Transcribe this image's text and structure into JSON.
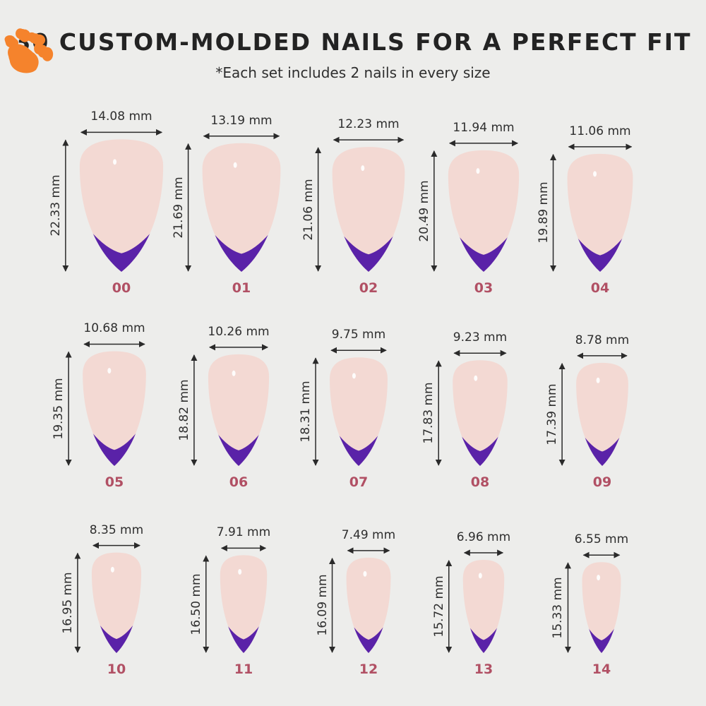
{
  "title": "30 CUSTOM-MOLDED NAILS FOR A PERFECT FIT",
  "subtitle": "*Each set includes 2 nails in every size",
  "colors": {
    "background": "#ededeb",
    "nail": "#f3d9d3",
    "tip": "#5a22a8",
    "paw": "#f5832c",
    "size_label": "#b15064"
  },
  "nails": [
    {
      "size": "00",
      "width": "14.08 mm",
      "height": "22.33 mm",
      "w": 14.08,
      "h": 22.33,
      "paw": false
    },
    {
      "size": "01",
      "width": "13.19 mm",
      "height": "21.69 mm",
      "w": 13.19,
      "h": 21.69,
      "paw": false
    },
    {
      "size": "02",
      "width": "12.23 mm",
      "height": "21.06 mm",
      "w": 12.23,
      "h": 21.06,
      "paw": false
    },
    {
      "size": "03",
      "width": "11.94 mm",
      "height": "20.49 mm",
      "w": 11.94,
      "h": 20.49,
      "paw": false
    },
    {
      "size": "04",
      "width": "11.06 mm",
      "height": "19.89 mm",
      "w": 11.06,
      "h": 19.89,
      "paw": false
    },
    {
      "size": "05",
      "width": "10.68 mm",
      "height": "19.35 mm",
      "w": 10.68,
      "h": 19.35,
      "paw": false
    },
    {
      "size": "06",
      "width": "10.26 mm",
      "height": "18.82 mm",
      "w": 10.26,
      "h": 18.82,
      "paw": true
    },
    {
      "size": "07",
      "width": "9.75 mm",
      "height": "18.31 mm",
      "w": 9.75,
      "h": 18.31,
      "paw": false
    },
    {
      "size": "08",
      "width": "9.23 mm",
      "height": "17.83 mm",
      "w": 9.23,
      "h": 17.83,
      "paw": true
    },
    {
      "size": "09",
      "width": "8.78 mm",
      "height": "17.39 mm",
      "w": 8.78,
      "h": 17.39,
      "paw": false
    },
    {
      "size": "10",
      "width": "8.35 mm",
      "height": "16.95 mm",
      "w": 8.35,
      "h": 16.95,
      "paw": true
    },
    {
      "size": "11",
      "width": "7.91 mm",
      "height": "16.50 mm",
      "w": 7.91,
      "h": 16.5,
      "paw": false
    },
    {
      "size": "12",
      "width": "7.49 mm",
      "height": "16.09 mm",
      "w": 7.49,
      "h": 16.09,
      "paw": false
    },
    {
      "size": "13",
      "width": "6.96 mm",
      "height": "15.72 mm",
      "w": 6.96,
      "h": 15.72,
      "paw": false
    },
    {
      "size": "14",
      "width": "6.55 mm",
      "height": "15.33 mm",
      "w": 6.55,
      "h": 15.33,
      "paw": false
    }
  ]
}
